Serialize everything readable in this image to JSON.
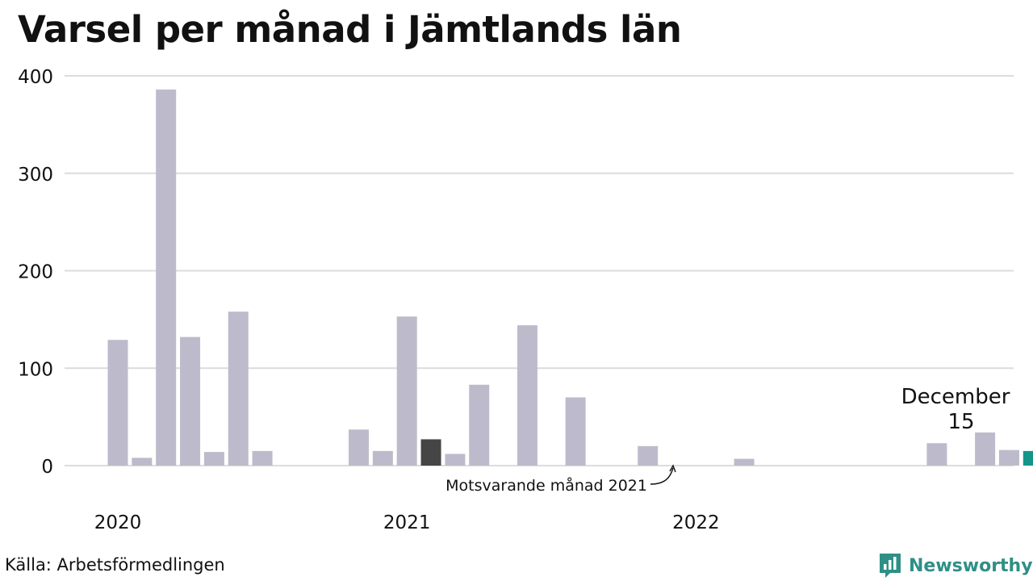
{
  "title": "Varsel per månad i Jämtlands län",
  "source": "Källa: Arbetsförmedlingen",
  "brand": {
    "name": "Newsworthy",
    "icon": "newsworthy-logo-icon",
    "color": "#2f8f86"
  },
  "colors": {
    "bar": "#bdbbcb",
    "comparison": "#454545",
    "highlight": "#13958a",
    "grid": "#dcdcdc"
  },
  "chart_data": {
    "type": "bar",
    "title": "Varsel per månad i Jämtlands län",
    "xlabel": "",
    "ylabel": "",
    "ylim": [
      0,
      400
    ],
    "yticks": [
      "0",
      "100",
      "200",
      "300",
      "400"
    ],
    "xticks": [
      "2020",
      "2021",
      "2022"
    ],
    "grid": true,
    "values": [
      129,
      8,
      386,
      132,
      14,
      158,
      15,
      0,
      0,
      0,
      37,
      15,
      153,
      27,
      12,
      83,
      0,
      144,
      0,
      70,
      0,
      0,
      20,
      0,
      0,
      0,
      7,
      0,
      0,
      0,
      0,
      0,
      0,
      0,
      23,
      0,
      34,
      16,
      15
    ],
    "comparison_index": 13,
    "highlight_index": 38,
    "annotations": {
      "highlight_label": "December",
      "highlight_value": "15",
      "comparison_label": "Motsvarande månad 2021"
    }
  }
}
